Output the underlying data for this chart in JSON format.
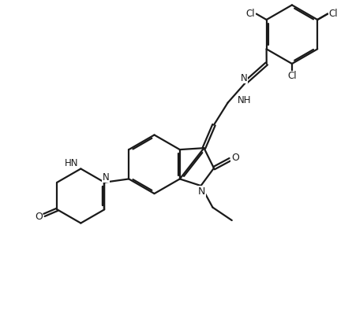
{
  "bg": "#ffffff",
  "lc": "#1a1a1a",
  "lw": 1.6,
  "fs": 8.5,
  "dbo": 0.055,
  "fig_w": 4.46,
  "fig_h": 3.94,
  "dpi": 100,
  "xlim": [
    -0.5,
    10.5
  ],
  "ylim": [
    -0.5,
    9.5
  ]
}
